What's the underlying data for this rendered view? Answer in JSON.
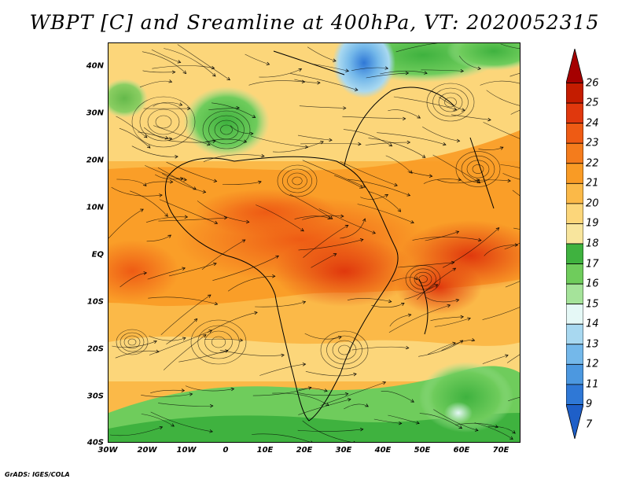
{
  "title": "WBPT [C] and Sreamline at 400hPa, VT: 2020052315",
  "credit": "GrADS: IGES/COLA",
  "map": {
    "lat_labels": [
      "40N",
      "30N",
      "20N",
      "10N",
      "EQ",
      "10S",
      "20S",
      "30S",
      "40S"
    ],
    "lon_labels": [
      "30W",
      "20W",
      "10W",
      "0",
      "10E",
      "20E",
      "30E",
      "40E",
      "50E",
      "60E",
      "70E"
    ],
    "lat_range": [
      -40,
      45
    ],
    "lon_range": [
      -30,
      75
    ]
  },
  "colorbar": {
    "labels": [
      "26",
      "25",
      "24",
      "23",
      "22",
      "21",
      "20",
      "19",
      "18",
      "17",
      "16",
      "15",
      "14",
      "13",
      "12",
      "11",
      "9",
      "7"
    ],
    "colors": [
      "#a50000",
      "#c41c00",
      "#e0380d",
      "#ee5b14",
      "#f47c1c",
      "#f99b25",
      "#fbb948",
      "#fcd67a",
      "#f8e59d",
      "#3fb23f",
      "#6fcc5c",
      "#a5e39a",
      "#e5f8f6",
      "#a8d8f0",
      "#74b8ea",
      "#4c98e0",
      "#2f78d6",
      "#1e5fc8"
    ]
  }
}
